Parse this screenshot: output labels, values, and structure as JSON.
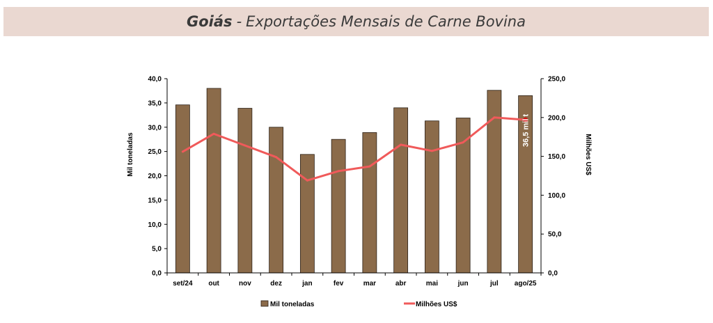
{
  "header": {
    "region": "Goiás",
    "separator": "-",
    "subtitle": "Exportações Mensais de Carne Bovina"
  },
  "colors": {
    "bar": "#8b6b4a",
    "bar_stroke": "#2b2016",
    "line": "#f05a5a",
    "marker": "#d01010",
    "title_bg": "#ead8d1"
  },
  "chart_data": {
    "type": "bar",
    "categories": [
      "set/24",
      "out",
      "nov",
      "dez",
      "jan",
      "fev",
      "mar",
      "abr",
      "mai",
      "jun",
      "jul",
      "ago/25"
    ],
    "series": [
      {
        "name": "Mil toneladas",
        "type": "bar",
        "axis": "left",
        "values": [
          34.6,
          38.0,
          33.9,
          30.0,
          24.4,
          27.5,
          28.9,
          34.0,
          31.3,
          31.9,
          37.6,
          36.5
        ]
      },
      {
        "name": "Milhões US$",
        "type": "line",
        "axis": "right",
        "values": [
          156,
          179,
          164,
          149,
          119,
          131,
          137,
          165,
          157,
          168,
          200,
          197
        ]
      }
    ],
    "ylabel": "Mil toneladas",
    "y2label": "Milhões US$",
    "ylim": [
      0,
      40
    ],
    "y2lim": [
      0,
      250
    ],
    "yticks": [
      "0,0",
      "5,0",
      "10,0",
      "15,0",
      "20,0",
      "25,0",
      "30,0",
      "35,0",
      "40,0"
    ],
    "y2ticks": [
      "0,0",
      "50,0",
      "100,0",
      "150,0",
      "200,0",
      "250,0"
    ],
    "annotation": {
      "category": "ago/25",
      "text": "36,5 mil t"
    },
    "grid": false,
    "legend": "bottom"
  }
}
